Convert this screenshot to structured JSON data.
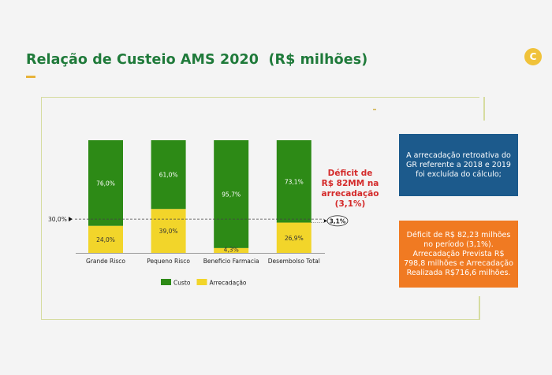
{
  "header": {
    "title": "Relação de Custeio AMS 2020  (R$ milhões)",
    "badge_letter": "C"
  },
  "colors": {
    "title_green": "#1f7a3a",
    "custo": "#2d8a16",
    "arrecadacao": "#f2d52a",
    "deficit_red": "#d42a2a",
    "box_blue": "#1c5a8c",
    "box_orange": "#f07a22",
    "accent_yellow": "#e8b33a"
  },
  "chart_data": {
    "type": "bar",
    "stacked": true,
    "percent_stacked": true,
    "title": "",
    "xlabel": "",
    "ylabel": "",
    "ylim": [
      0,
      100
    ],
    "categories": [
      "Grande Risco",
      "Pequeno Risco",
      "Beneficio Farmacia",
      "Desembolso Total"
    ],
    "series": [
      {
        "name": "Arrecadação",
        "values": [
          24.0,
          39.0,
          4.3,
          26.9
        ],
        "labels": [
          "24,0%",
          "39,0%",
          "4,3%",
          "26,9%"
        ],
        "color": "#f2d52a"
      },
      {
        "name": "Custo",
        "values": [
          76.0,
          61.0,
          95.7,
          73.1
        ],
        "labels": [
          "76,0%",
          "61,0%",
          "95,7%",
          "73,1%"
        ],
        "color": "#2d8a16"
      }
    ],
    "reference_line": {
      "value": 30.0,
      "label": "30,0%",
      "style": "dashed"
    },
    "gap_annotation": {
      "label": "3,1%",
      "from": 26.9,
      "to": 30.0
    },
    "legend": {
      "position": "bottom",
      "entries": [
        {
          "label": "Custo",
          "color": "#2d8a16"
        },
        {
          "label": "Arrecadação",
          "color": "#f2d52a"
        }
      ]
    },
    "annotation": "Déficit de R$ 82MM na arrecadação (3,1%)",
    "grid": false
  },
  "annotation_lines": [
    "Déficit de",
    "R$ 82MM na",
    "arrecadação",
    "(3,1%)"
  ],
  "info_boxes": {
    "blue": {
      "text": "A arrecadação retroativa do GR referente a 2018 e 2019 foi excluída do cálculo;"
    },
    "orange": {
      "text": "Déficit de R$ 82,23 milhões no período (3,1%). Arrecadação Prevista R$ 798,8 milhões e Arrecadação Realizada R$716,6 milhões."
    }
  }
}
